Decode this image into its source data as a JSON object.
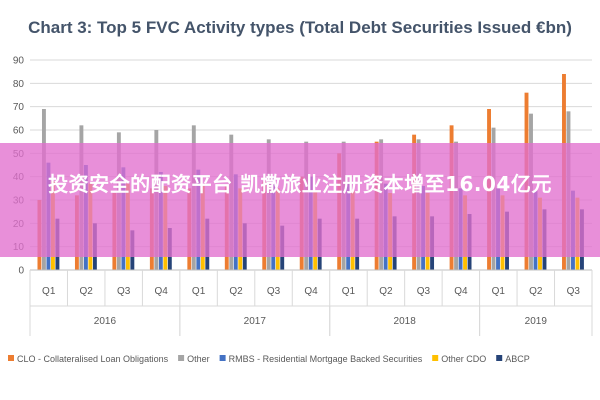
{
  "chart_data": {
    "type": "bar",
    "title": "Chart 3: Top 5 FVC Activity types (Total Debt Securities Issued €bn)",
    "ylim": [
      0,
      90
    ],
    "yticks": [
      0,
      10,
      20,
      30,
      40,
      50,
      60,
      70,
      80,
      90
    ],
    "grid": true,
    "legend_position": "bottom",
    "categories": [
      "Q1",
      "Q2",
      "Q3",
      "Q4",
      "Q1",
      "Q2",
      "Q3",
      "Q4",
      "Q1",
      "Q2",
      "Q3",
      "Q4",
      "Q1",
      "Q2",
      "Q3"
    ],
    "years": [
      {
        "label": "2016",
        "start": 0,
        "count": 4
      },
      {
        "label": "2017",
        "start": 4,
        "count": 4
      },
      {
        "label": "2018",
        "start": 8,
        "count": 4
      },
      {
        "label": "2019",
        "start": 12,
        "count": 3
      }
    ],
    "series": [
      {
        "name": "CLO - Collateralised Loan Obligations",
        "color": "#ed7d31",
        "values": [
          30,
          32,
          33,
          35,
          35,
          36,
          38,
          40,
          50,
          55,
          58,
          62,
          69,
          76,
          84
        ]
      },
      {
        "name": "Other",
        "color": "#a5a5a5",
        "values": [
          69,
          62,
          59,
          60,
          62,
          58,
          56,
          55,
          55,
          56,
          56,
          55,
          61,
          67,
          68
        ]
      },
      {
        "name": "RMBS - Residential Mortgage Backed Securities",
        "color": "#4472c4",
        "values": [
          46,
          45,
          44,
          42,
          43,
          41,
          40,
          40,
          38,
          37,
          36,
          35,
          35,
          34,
          34
        ]
      },
      {
        "name": "Other CDO",
        "color": "#ffc000",
        "values": [
          38,
          37,
          37,
          36,
          36,
          35,
          35,
          34,
          34,
          33,
          33,
          32,
          32,
          31,
          31
        ]
      },
      {
        "name": "ABCP",
        "color": "#264478",
        "values": [
          22,
          20,
          17,
          18,
          22,
          20,
          19,
          22,
          22,
          23,
          23,
          24,
          25,
          26,
          26
        ]
      }
    ]
  },
  "overlay": {
    "text": "投资安全的配资平台 凯撒旅业注册资本增至16.04亿元"
  }
}
